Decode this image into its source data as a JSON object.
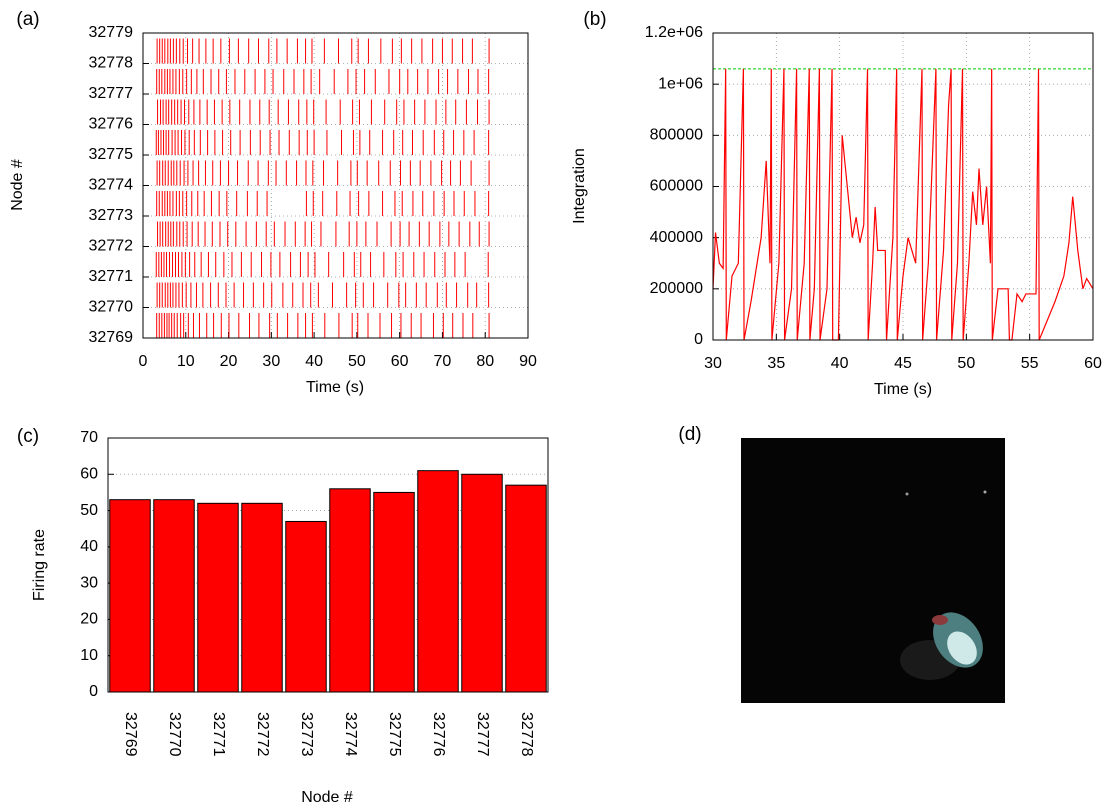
{
  "chart_data": [
    {
      "type": "raster",
      "label": "(a)",
      "x_label": "Time (s)",
      "y_label": "Node #",
      "color": "#ff0000",
      "xlim": [
        0,
        90
      ],
      "xticks": [
        0,
        10,
        20,
        30,
        40,
        50,
        60,
        70,
        80,
        90
      ],
      "ylim": [
        32769,
        32779
      ],
      "yticks": [
        32769,
        32770,
        32771,
        32772,
        32773,
        32774,
        32775,
        32776,
        32777,
        32778,
        32779
      ],
      "grid": true,
      "rows": [
        {
          "node": 32769,
          "spikes": [
            3.2,
            3.8,
            4.4,
            5.0,
            5.6,
            6.1,
            6.7,
            7.3,
            8.0,
            8.8,
            9.5,
            10.6,
            11.8,
            13.2,
            14.9,
            16.5,
            18.3,
            20.1,
            22.4,
            24.9,
            27.1,
            29.6,
            31.4,
            33.8,
            36.2,
            38.0,
            39.6,
            42.5,
            45.8,
            48.9,
            50.2,
            52.6,
            55.4,
            58.1,
            60.3,
            62.7,
            65.0,
            67.9,
            70.2,
            72.4,
            74.8,
            77.1,
            80.9
          ]
        },
        {
          "node": 32770,
          "spikes": [
            3.3,
            3.9,
            4.5,
            5.2,
            5.8,
            6.4,
            7.0,
            7.7,
            8.4,
            9.2,
            10.1,
            11.2,
            12.5,
            14.0,
            15.8,
            17.6,
            19.4,
            21.3,
            23.5,
            25.8,
            28.2,
            30.1,
            32.7,
            35.0,
            37.4,
            39.2,
            41.0,
            44.3,
            47.6,
            49.7,
            51.5,
            53.9,
            57.2,
            59.8,
            61.4,
            63.9,
            66.2,
            68.8,
            70.9,
            73.3,
            75.9,
            78.0,
            80.8
          ]
        },
        {
          "node": 32771,
          "spikes": [
            3.1,
            3.7,
            4.3,
            4.9,
            5.5,
            6.2,
            6.9,
            7.6,
            8.3,
            9.1,
            9.9,
            10.9,
            12.1,
            13.6,
            15.3,
            17.0,
            18.9,
            20.8,
            23.0,
            25.3,
            27.7,
            29.9,
            32.0,
            34.5,
            36.8,
            38.6,
            40.2,
            43.4,
            46.9,
            49.4,
            50.9,
            53.2,
            56.3,
            59.1,
            60.8,
            63.3,
            65.7,
            68.2,
            70.6,
            72.9,
            75.3,
            80.7
          ]
        },
        {
          "node": 32772,
          "spikes": [
            3.4,
            4.0,
            4.6,
            5.3,
            5.9,
            6.5,
            7.1,
            7.9,
            8.6,
            9.4,
            10.3,
            11.5,
            12.9,
            14.5,
            16.2,
            18.0,
            19.8,
            21.7,
            24.1,
            26.5,
            28.8,
            30.7,
            33.2,
            35.6,
            37.9,
            39.4,
            41.6,
            45.1,
            48.2,
            50.0,
            52.1,
            54.7,
            58.0,
            60.1,
            62.2,
            64.6,
            66.9,
            69.4,
            71.5,
            73.9,
            76.4,
            78.6,
            80.9
          ]
        },
        {
          "node": 32773,
          "spikes": [
            3.2,
            3.8,
            4.5,
            5.1,
            5.7,
            6.3,
            7.0,
            7.8,
            8.5,
            9.3,
            10.2,
            11.4,
            12.8,
            14.3,
            16.0,
            17.8,
            19.6,
            21.9,
            24.4,
            26.7,
            29.0,
            38.2,
            39.8,
            42.0,
            45.3,
            48.4,
            50.4,
            52.8,
            56.0,
            58.9,
            60.6,
            63.1,
            65.4,
            68.0,
            70.4,
            72.7,
            75.1,
            77.6,
            80.8
          ]
        },
        {
          "node": 32774,
          "spikes": [
            3.3,
            3.9,
            4.6,
            5.2,
            5.9,
            6.6,
            7.2,
            7.9,
            8.7,
            9.6,
            10.5,
            11.7,
            13.0,
            14.6,
            16.3,
            18.1,
            20.0,
            22.1,
            24.6,
            26.9,
            29.3,
            31.1,
            33.5,
            35.9,
            38.1,
            39.7,
            42.2,
            45.5,
            48.6,
            50.1,
            52.4,
            55.1,
            57.8,
            60.2,
            62.5,
            64.8,
            67.3,
            69.8,
            71.9,
            74.2,
            76.7,
            80.9
          ]
        },
        {
          "node": 32775,
          "spikes": [
            3.1,
            3.6,
            4.2,
            4.8,
            5.4,
            6.0,
            6.8,
            7.5,
            8.2,
            9.0,
            9.8,
            10.8,
            12.0,
            13.4,
            15.1,
            16.8,
            18.6,
            20.5,
            22.7,
            25.1,
            27.4,
            29.7,
            31.8,
            34.2,
            36.5,
            38.4,
            40.0,
            43.0,
            46.4,
            49.2,
            50.7,
            53.0,
            56.0,
            58.6,
            60.7,
            63.0,
            65.5,
            68.1,
            70.3,
            72.6,
            75.0,
            77.4,
            80.8
          ]
        },
        {
          "node": 32776,
          "spikes": [
            3.4,
            4.1,
            4.7,
            5.4,
            6.0,
            6.7,
            7.4,
            8.1,
            8.9,
            9.7,
            10.7,
            11.9,
            13.3,
            15.0,
            16.7,
            18.5,
            20.3,
            22.6,
            25.0,
            27.3,
            29.5,
            31.6,
            34.0,
            36.4,
            38.3,
            39.9,
            42.8,
            46.1,
            49.0,
            50.6,
            53.4,
            56.5,
            59.3,
            61.0,
            63.5,
            65.9,
            68.5,
            70.8,
            73.1,
            75.6,
            78.2,
            80.9
          ]
        },
        {
          "node": 32777,
          "spikes": [
            3.2,
            3.8,
            4.4,
            5.1,
            5.7,
            6.3,
            7.0,
            7.7,
            8.5,
            9.3,
            10.2,
            11.3,
            12.6,
            14.1,
            15.9,
            17.7,
            19.5,
            21.5,
            23.8,
            26.2,
            28.5,
            30.4,
            32.9,
            35.3,
            37.6,
            39.3,
            41.3,
            44.7,
            47.9,
            49.8,
            51.8,
            54.3,
            57.5,
            60.0,
            61.9,
            64.2,
            66.6,
            69.1,
            71.2,
            73.6,
            76.1,
            78.3,
            80.8
          ]
        },
        {
          "node": 32778,
          "spikes": [
            3.3,
            3.9,
            4.5,
            5.1,
            5.8,
            6.4,
            7.1,
            7.8,
            8.6,
            9.4,
            10.4,
            11.6,
            13.1,
            14.7,
            16.4,
            18.2,
            20.2,
            22.3,
            24.7,
            27.0,
            29.4,
            31.3,
            33.7,
            36.1,
            38.0,
            39.5,
            42.4,
            45.7,
            48.8,
            50.3,
            52.7,
            55.6,
            58.3,
            60.4,
            62.8,
            65.2,
            67.7,
            70.0,
            72.3,
            74.7,
            77.0,
            80.9
          ]
        }
      ]
    },
    {
      "type": "line",
      "label": "(b)",
      "x_label": "Time (s)",
      "y_label": "Integration",
      "color": "#ff0000",
      "threshold": 1060000,
      "threshold_color": "#00cc00",
      "xlim": [
        30,
        60
      ],
      "xticks": [
        30,
        35,
        40,
        45,
        50,
        55,
        60
      ],
      "ylim": [
        0,
        1200000
      ],
      "yticks": [
        0,
        200000,
        400000,
        600000,
        800000,
        {
          "value": 1000000,
          "label": "1e+06"
        },
        {
          "value": 1200000,
          "label": "1.2e+06"
        }
      ],
      "grid": true,
      "x": [
        30,
        30.2,
        30.5,
        30.8,
        31.0,
        31.05,
        31.5,
        32.0,
        32.4,
        32.45,
        33.0,
        33.8,
        34.2,
        34.5,
        34.6,
        34.65,
        35.2,
        35.6,
        35.65,
        36.2,
        36.6,
        36.65,
        37.2,
        37.6,
        37.65,
        38.0,
        38.4,
        38.45,
        39.0,
        39.4,
        39.45,
        39.9,
        40.2,
        40.6,
        41.0,
        41.3,
        41.6,
        41.9,
        42.2,
        42.25,
        42.6,
        42.8,
        43.0,
        43.6,
        43.7,
        44.2,
        44.5,
        44.55,
        45.0,
        45.4,
        45.7,
        46.0,
        46.5,
        46.55,
        47.0,
        47.6,
        47.65,
        48.2,
        48.6,
        48.8,
        48.85,
        49.3,
        49.7,
        49.75,
        50.2,
        50.5,
        50.8,
        51.0,
        51.3,
        51.6,
        51.9,
        52.0,
        52.05,
        52.5,
        53.3,
        53.4,
        53.6,
        54.0,
        54.4,
        54.7,
        55.5,
        55.7,
        55.75,
        57.0,
        57.7,
        58.1,
        58.4,
        58.8,
        59.2,
        59.5,
        60.0
      ],
      "values": [
        200000,
        420000,
        300000,
        280000,
        1060000,
        0,
        250000,
        300000,
        1060000,
        0,
        150000,
        400000,
        700000,
        300000,
        1060000,
        0,
        300000,
        1060000,
        0,
        200000,
        1060000,
        0,
        300000,
        1060000,
        0,
        200000,
        1060000,
        0,
        200000,
        1060000,
        0,
        0,
        800000,
        600000,
        400000,
        480000,
        380000,
        450000,
        1060000,
        0,
        300000,
        520000,
        350000,
        350000,
        0,
        400000,
        1060000,
        0,
        250000,
        400000,
        350000,
        300000,
        1060000,
        0,
        300000,
        1060000,
        0,
        350000,
        920000,
        1060000,
        0,
        300000,
        1060000,
        0,
        300000,
        580000,
        450000,
        670000,
        450000,
        600000,
        300000,
        1060000,
        0,
        200000,
        200000,
        0,
        0,
        180000,
        150000,
        180000,
        180000,
        1060000,
        0,
        150000,
        250000,
        380000,
        560000,
        350000,
        200000,
        240000,
        200000
      ]
    },
    {
      "type": "bar",
      "label": "(c)",
      "x_label": "Node #",
      "y_label": "Firing rate",
      "color": "#ff0000",
      "ylim": [
        0,
        70
      ],
      "yticks": [
        0,
        10,
        20,
        30,
        40,
        50,
        60,
        70
      ],
      "grid": true,
      "categories": [
        "32769",
        "32770",
        "32771",
        "32772",
        "32773",
        "32774",
        "32775",
        "32776",
        "32777",
        "32778"
      ],
      "values": [
        53,
        53,
        52,
        52,
        47,
        56,
        55,
        61,
        60,
        57
      ]
    },
    {
      "type": "image",
      "label": "(d)"
    }
  ]
}
